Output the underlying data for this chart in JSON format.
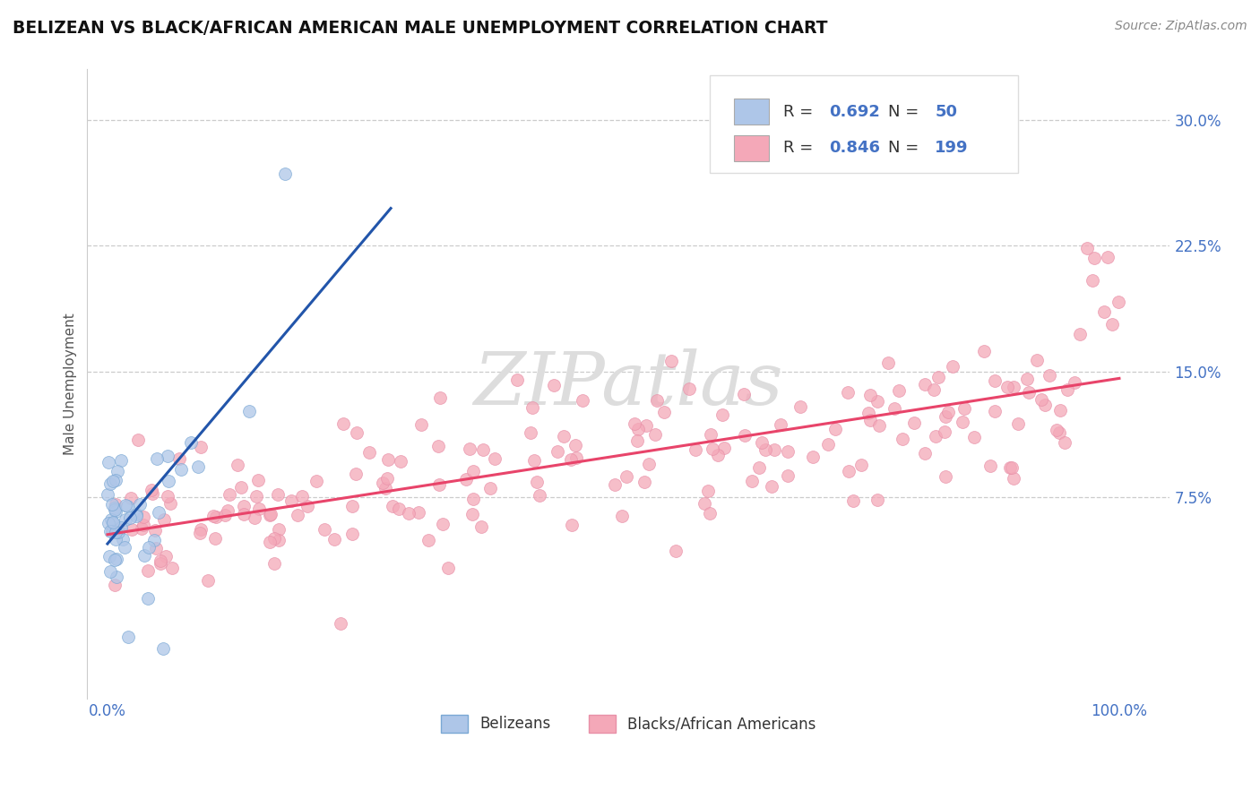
{
  "title": "BELIZEAN VS BLACK/AFRICAN AMERICAN MALE UNEMPLOYMENT CORRELATION CHART",
  "source": "Source: ZipAtlas.com",
  "ylabel": "Male Unemployment",
  "xlim": [
    -0.02,
    1.05
  ],
  "ylim": [
    -0.045,
    0.33
  ],
  "xticks": [
    0.0,
    1.0
  ],
  "xtick_labels": [
    "0.0%",
    "100.0%"
  ],
  "yticks": [
    0.0,
    0.075,
    0.15,
    0.225,
    0.3
  ],
  "ytick_labels": [
    "",
    "7.5%",
    "15.0%",
    "22.5%",
    "30.0%"
  ],
  "belizean_color": "#aec6e8",
  "black_color": "#f4a8b8",
  "belizean_edge_color": "#7aa8d4",
  "black_edge_color": "#e890a8",
  "belizean_line_color": "#2255aa",
  "black_line_color": "#e8446a",
  "R_belizean": 0.692,
  "N_belizean": 50,
  "R_black": 0.846,
  "N_black": 199,
  "legend_belizean": "Belizeans",
  "legend_black": "Blacks/African Americans",
  "watermark": "ZIPatlas",
  "background_color": "#ffffff",
  "grid_color": "#cccccc",
  "title_color": "#111111",
  "axis_label_color": "#555555",
  "tick_label_color": "#4472c4",
  "title_fontsize": 13.5,
  "axis_label_fontsize": 11,
  "tick_fontsize": 12,
  "legend_fontsize": 12,
  "source_fontsize": 10,
  "watermark_fontsize": 60,
  "scatter_size": 100,
  "scatter_alpha": 0.75
}
